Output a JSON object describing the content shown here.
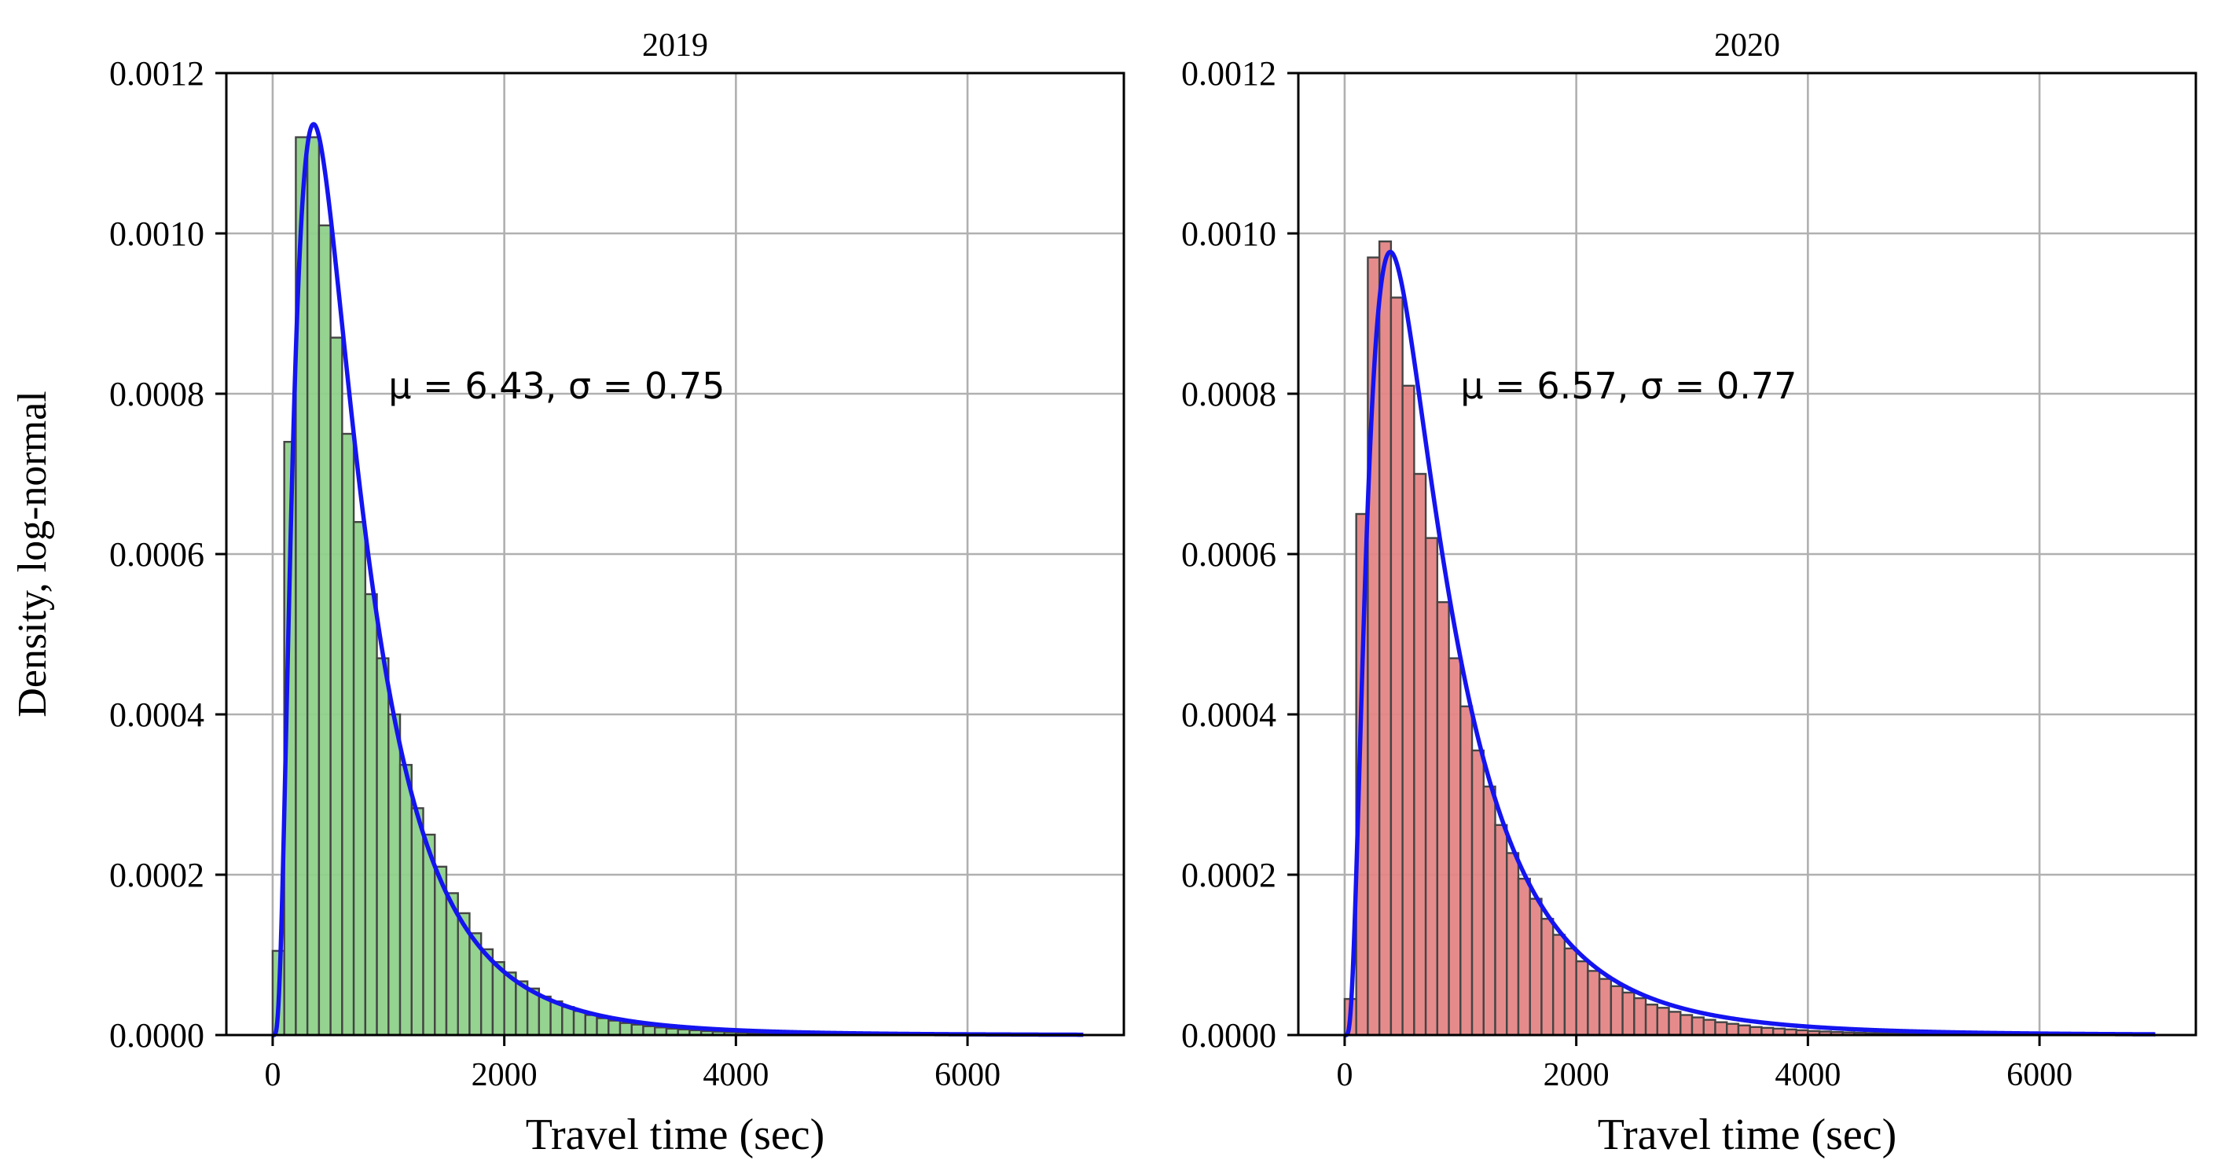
{
  "figure": {
    "ylabel": "Density, log-normal"
  },
  "chart_data": [
    {
      "type": "bar",
      "title": "2019",
      "xlabel": "Travel time (sec)",
      "ylabel": "Density, log-normal",
      "xlim": [
        -400,
        7350
      ],
      "ylim": [
        0,
        0.0012
      ],
      "xticks": [
        0,
        2000,
        4000,
        6000
      ],
      "yticks": [
        0.0,
        0.0002,
        0.0004,
        0.0006,
        0.0008,
        0.001,
        0.0012
      ],
      "ytick_labels": [
        "0.0000",
        "0.0002",
        "0.0004",
        "0.0006",
        "0.0008",
        "0.0010",
        "0.0012"
      ],
      "grid": true,
      "annotation": "μ = 6.43,  σ = 0.75",
      "bar_color": "#8fd18a",
      "bar_edge_color": "#444444",
      "curve_color": "#1414f0",
      "bin_width": 100,
      "bin_starts": [
        0,
        100,
        200,
        300,
        400,
        500,
        600,
        700,
        800,
        900,
        1000,
        1100,
        1200,
        1300,
        1400,
        1500,
        1600,
        1700,
        1800,
        1900,
        2000,
        2100,
        2200,
        2300,
        2400,
        2500,
        2600,
        2700,
        2800,
        2900,
        3000,
        3100,
        3200,
        3300,
        3400,
        3500,
        3600,
        3700,
        3800,
        3900,
        4000,
        4100,
        4200,
        4300,
        4400,
        4500,
        4600,
        4700,
        4800,
        4900,
        5000
      ],
      "values": [
        0.000105,
        0.00074,
        0.00112,
        0.00112,
        0.00101,
        0.00087,
        0.00075,
        0.00064,
        0.00055,
        0.00047,
        0.0004,
        0.000337,
        0.000283,
        0.00025,
        0.00021,
        0.000177,
        0.000152,
        0.000127,
        0.000107,
        9.1e-05,
        7.8e-05,
        6.7e-05,
        5.8e-05,
        4.8e-05,
        4.2e-05,
        3.5e-05,
        3e-05,
        2.5e-05,
        2.1e-05,
        1.8e-05,
        1.5e-05,
        1.3e-05,
        1.1e-05,
        9.5e-06,
        8e-06,
        7e-06,
        6e-06,
        5e-06,
        4.3e-06,
        3.6e-06,
        3e-06,
        2.6e-06,
        2.2e-06,
        1.9e-06,
        1.6e-06,
        1.4e-06,
        1.2e-06,
        1e-06,
        9e-07,
        8e-07,
        7e-07
      ],
      "fit": {
        "mu": 6.43,
        "sigma": 0.75,
        "x_range": [
          0,
          7000
        ]
      }
    },
    {
      "type": "bar",
      "title": "2020",
      "xlabel": "Travel time (sec)",
      "xlim": [
        -400,
        7350
      ],
      "ylim": [
        0,
        0.0012
      ],
      "xticks": [
        0,
        2000,
        4000,
        6000
      ],
      "yticks": [
        0.0,
        0.0002,
        0.0004,
        0.0006,
        0.0008,
        0.001,
        0.0012
      ],
      "ytick_labels": [
        "0.0000",
        "0.0002",
        "0.0004",
        "0.0006",
        "0.0008",
        "0.0010",
        "0.0012"
      ],
      "grid": true,
      "annotation": "μ = 6.57,  σ = 0.77",
      "bar_color": "#e58585",
      "bar_edge_color": "#444444",
      "curve_color": "#1414f0",
      "bin_width": 100,
      "bin_starts": [
        0,
        100,
        200,
        300,
        400,
        500,
        600,
        700,
        800,
        900,
        1000,
        1100,
        1200,
        1300,
        1400,
        1500,
        1600,
        1700,
        1800,
        1900,
        2000,
        2100,
        2200,
        2300,
        2400,
        2500,
        2600,
        2700,
        2800,
        2900,
        3000,
        3100,
        3200,
        3300,
        3400,
        3500,
        3600,
        3700,
        3800,
        3900,
        4000,
        4100,
        4200,
        4300,
        4400,
        4500,
        4600,
        4700,
        4800,
        4900,
        5000
      ],
      "values": [
        4.5e-05,
        0.00065,
        0.00097,
        0.00099,
        0.00092,
        0.00081,
        0.0007,
        0.00062,
        0.00054,
        0.00047,
        0.00041,
        0.000355,
        0.00031,
        0.000262,
        0.000227,
        0.000195,
        0.00017,
        0.000145,
        0.000125,
        0.000108,
        9.2e-05,
        8e-05,
        7e-05,
        6.1e-05,
        5.3e-05,
        4.6e-05,
        3.8e-05,
        3.4e-05,
        2.9e-05,
        2.5e-05,
        2.2e-05,
        1.9e-05,
        1.6e-05,
        1.4e-05,
        1.2e-05,
        1e-05,
        9e-06,
        8e-06,
        7e-06,
        6e-06,
        5e-06,
        4.4e-06,
        3.8e-06,
        3.3e-06,
        2.9e-06,
        2.5e-06,
        2.2e-06,
        1.9e-06,
        1.7e-06,
        1.5e-06,
        1.3e-06
      ],
      "fit": {
        "mu": 6.57,
        "sigma": 0.77,
        "x_range": [
          0,
          7000
        ]
      }
    }
  ]
}
